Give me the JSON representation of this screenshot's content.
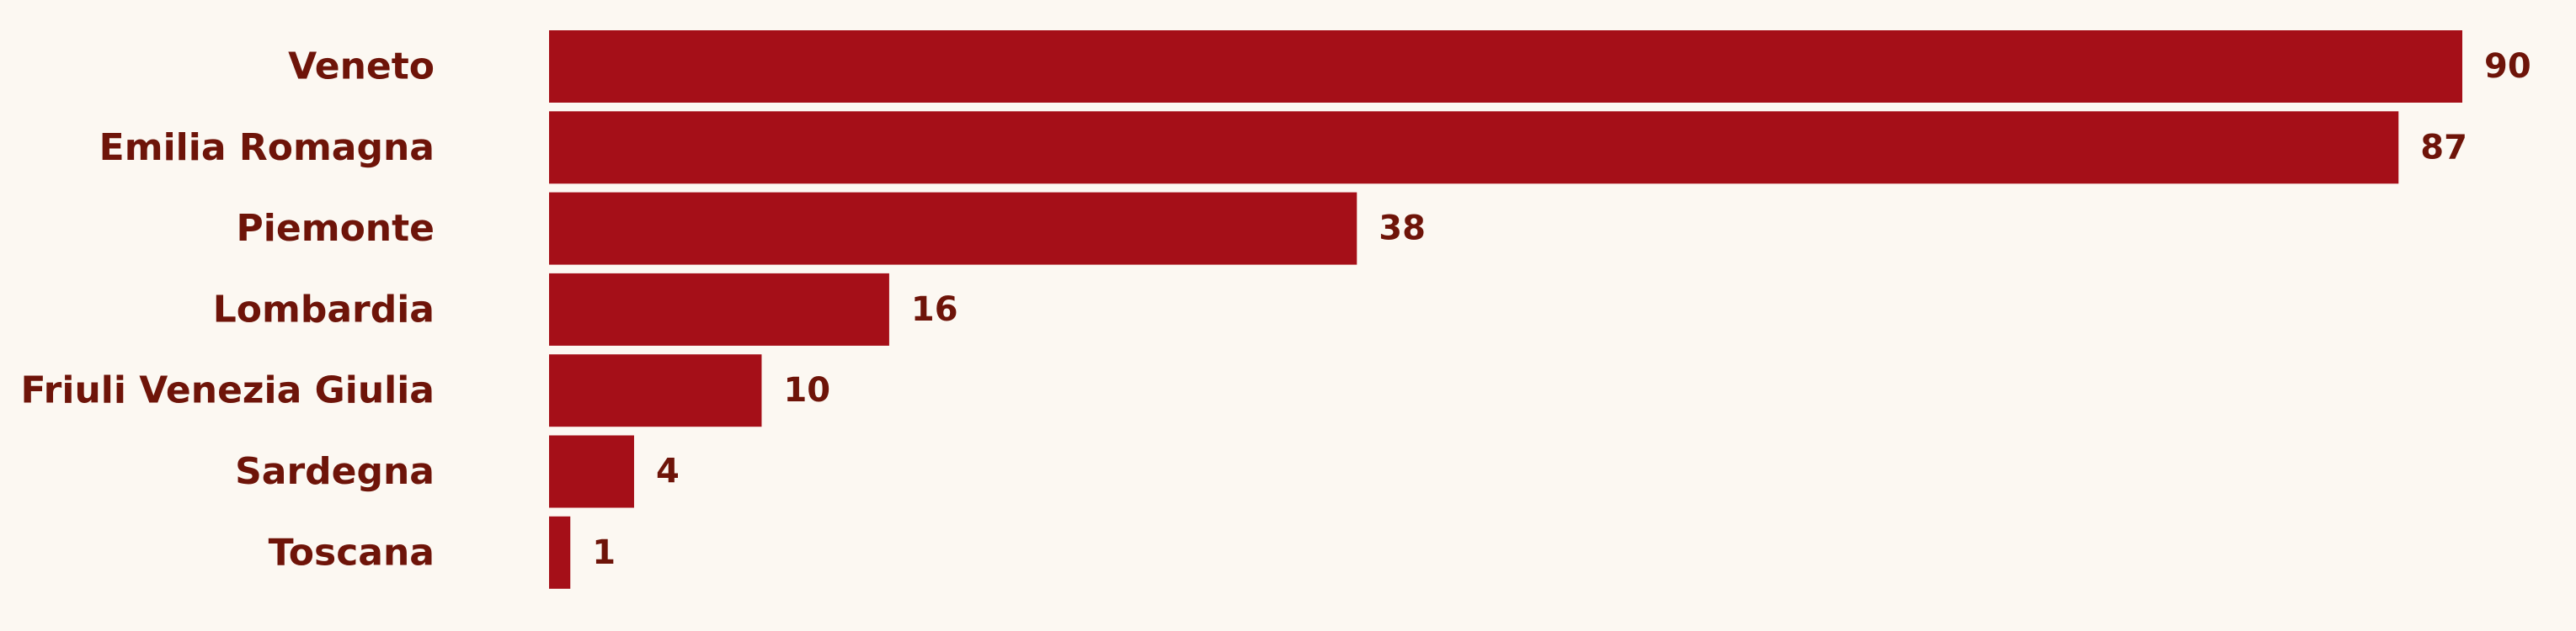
{
  "colors": {
    "background": "#fcf8f2",
    "bar": "#a50f18",
    "text": "#6e1409"
  },
  "chart_data": {
    "type": "bar",
    "orientation": "horizontal",
    "categories": [
      "Veneto",
      "Emilia Romagna",
      "Piemonte",
      "Lombardia",
      "Friuli Venezia Giulia",
      "Sardegna",
      "Toscana"
    ],
    "values": [
      90,
      87,
      38,
      16,
      10,
      4,
      1
    ],
    "data_labels": [
      "90",
      "87",
      "38",
      "16",
      "10",
      "4",
      "1"
    ],
    "xlim": [
      0,
      90
    ],
    "grid": false,
    "legend": "none"
  }
}
